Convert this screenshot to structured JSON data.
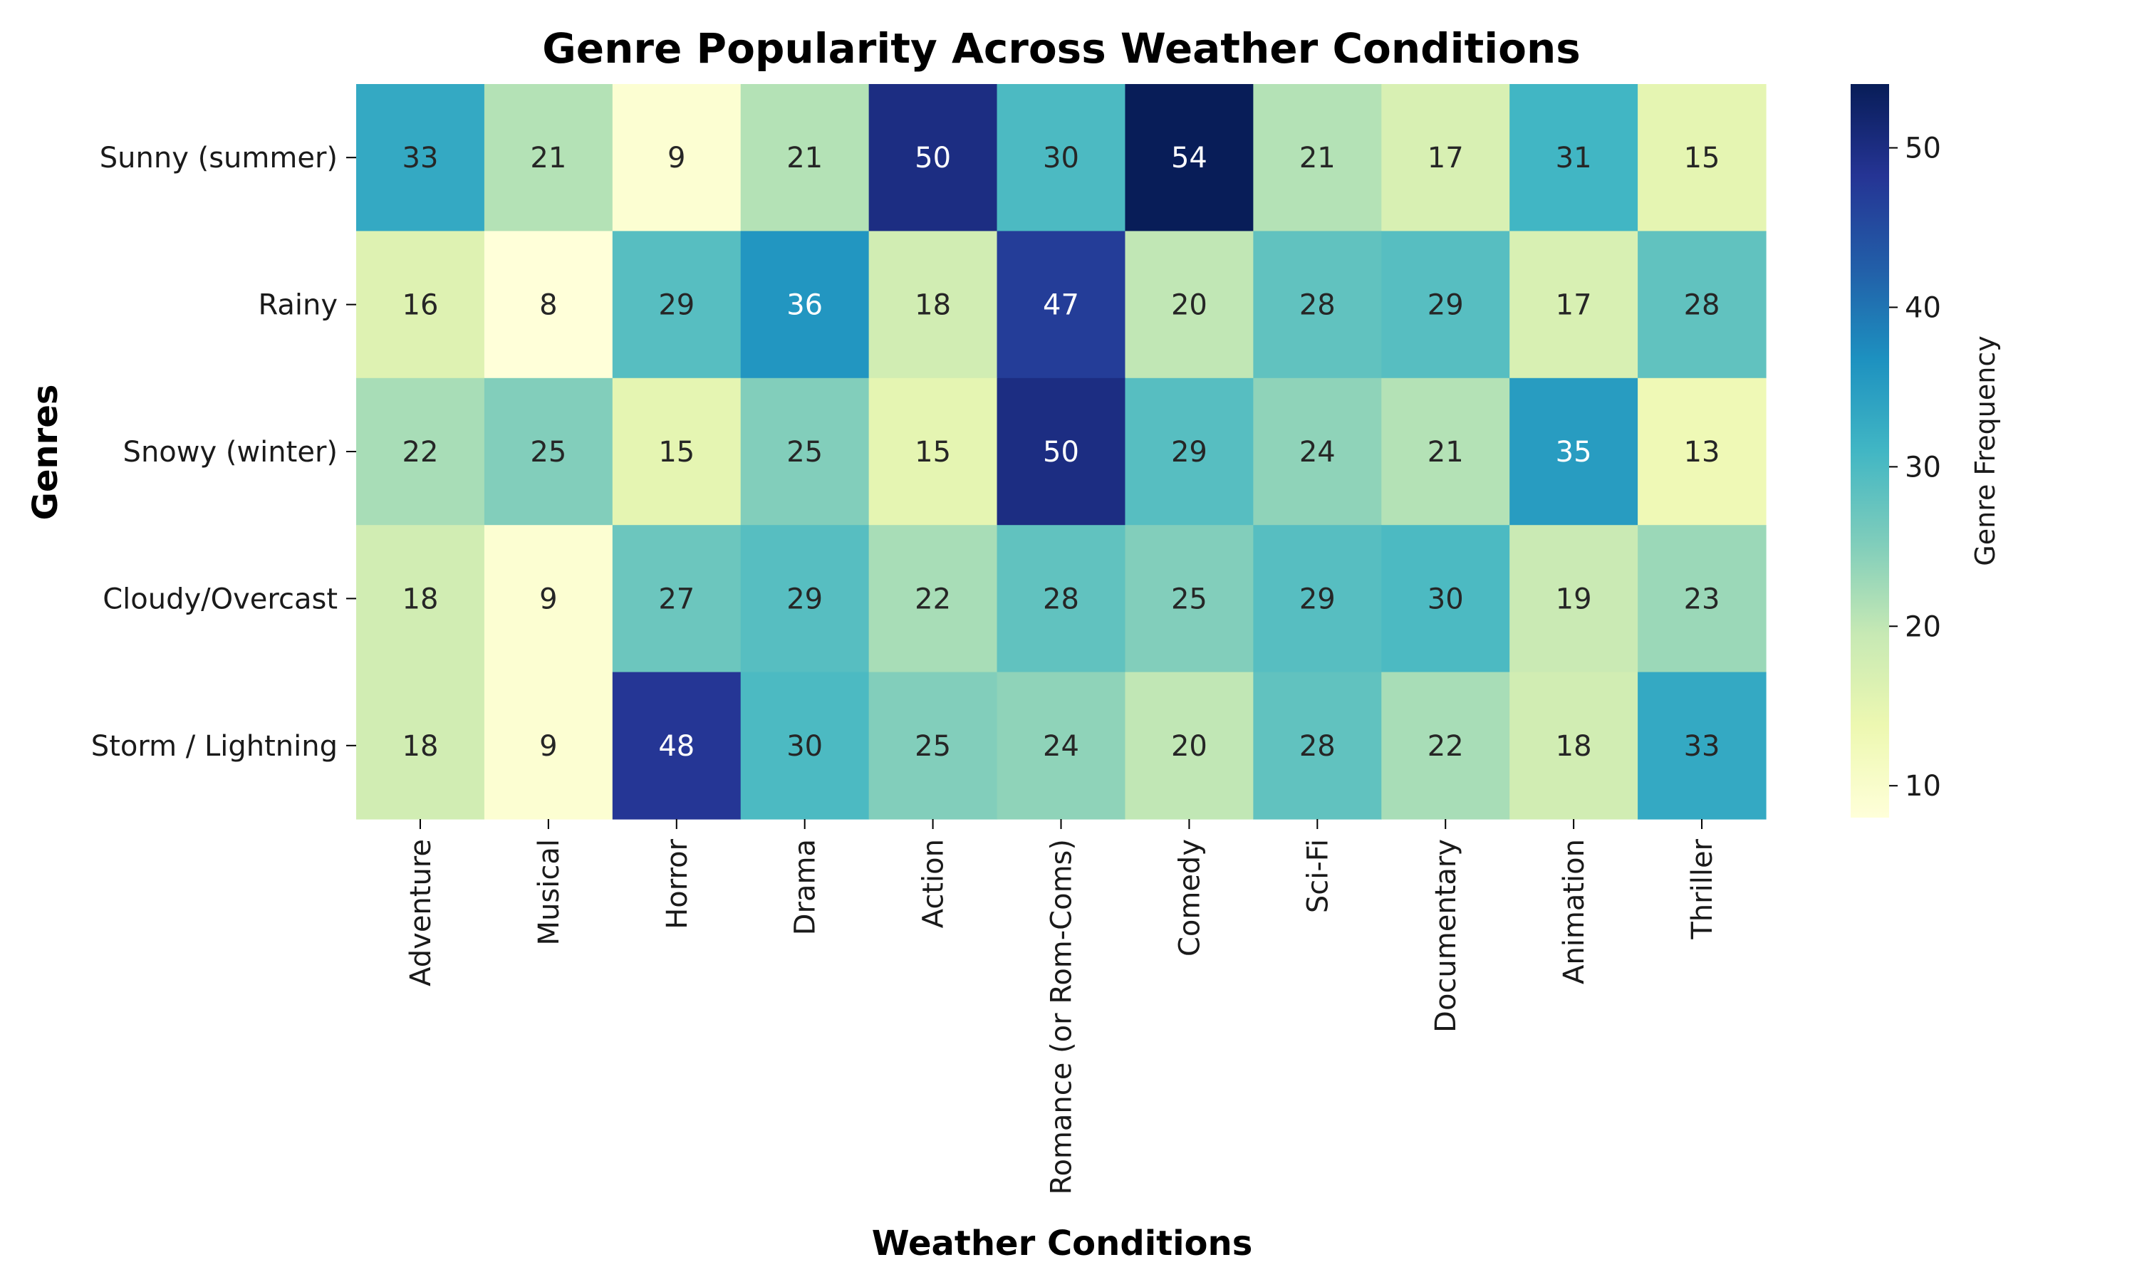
{
  "chart_data": {
    "type": "heatmap",
    "title": "Genre Popularity Across Weather Conditions",
    "xlabel": "Weather Conditions",
    "ylabel": "Genres",
    "colorbar_label": "Genre Frequency",
    "colorbar_ticks": [
      10,
      20,
      30,
      40,
      50
    ],
    "value_range": [
      8,
      54
    ],
    "colormap": "YlGnBu",
    "x_categories": [
      "Adventure",
      "Musical",
      "Horror",
      "Drama",
      "Action",
      "Romance (or Rom-Coms)",
      "Comedy",
      "Sci-Fi",
      "Documentary",
      "Animation",
      "Thriller"
    ],
    "y_categories": [
      "Sunny (summer)",
      "Rainy ",
      "Snowy (winter)",
      "Cloudy/Overcast",
      "Storm / Lightning"
    ],
    "values": [
      [
        33,
        21,
        9,
        21,
        50,
        30,
        54,
        21,
        17,
        31,
        15
      ],
      [
        16,
        8,
        29,
        36,
        18,
        47,
        20,
        28,
        29,
        17,
        28
      ],
      [
        22,
        25,
        15,
        25,
        15,
        50,
        29,
        24,
        21,
        35,
        13
      ],
      [
        18,
        9,
        27,
        29,
        22,
        28,
        25,
        29,
        30,
        19,
        23
      ],
      [
        18,
        9,
        48,
        30,
        25,
        24,
        20,
        28,
        22,
        18,
        33
      ]
    ]
  }
}
